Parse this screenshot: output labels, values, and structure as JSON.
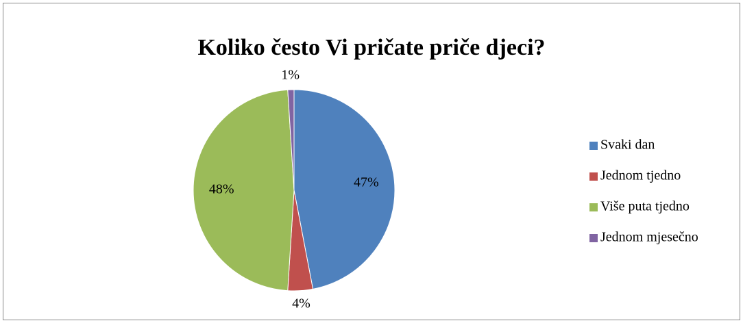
{
  "chart_data": {
    "type": "pie",
    "title": "Koliko često Vi pričate priče djeci?",
    "categories": [
      "Svaki dan",
      "Jednom tjedno",
      "Više puta tjedno",
      "Jednom mjesečno"
    ],
    "values": [
      47,
      4,
      48,
      1
    ],
    "value_labels": [
      "47%",
      "4%",
      "48%",
      "1%"
    ],
    "colors": [
      "#4f81bd",
      "#c0504d",
      "#9bbb59",
      "#8064a2"
    ],
    "legend": "right"
  }
}
